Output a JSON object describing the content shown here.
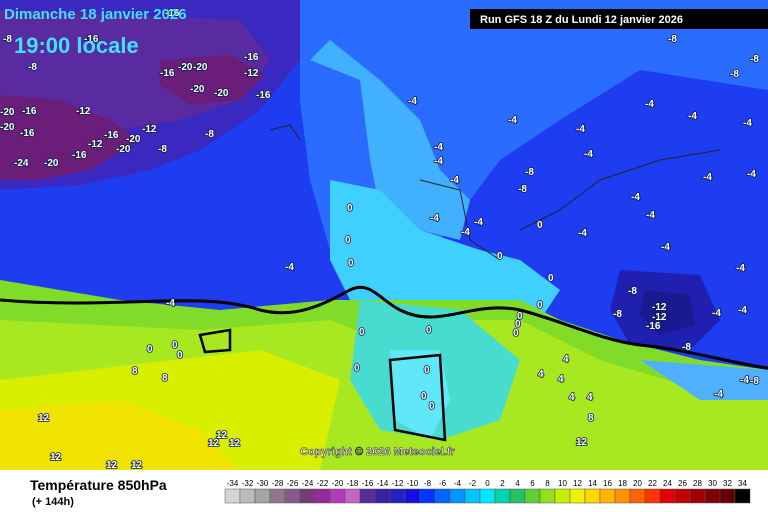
{
  "header": {
    "date": "Dimanche 18 janvier 2026",
    "time": "19:00 locale",
    "run": "Run GFS 18 Z du Lundi 12 janvier 2026"
  },
  "copyright": "Copyright © 2026 Meteociel.fr",
  "footer": {
    "title": "Température 850hPa",
    "lead": "(+ 144h)"
  },
  "legend": {
    "ticks": [
      -34,
      -32,
      -30,
      -28,
      -26,
      -24,
      -22,
      -20,
      -18,
      -16,
      -14,
      -12,
      -10,
      -8,
      -6,
      -4,
      -2,
      0,
      2,
      4,
      6,
      8,
      10,
      12,
      14,
      16,
      18,
      20,
      22,
      24,
      26,
      28,
      30,
      32,
      34
    ],
    "colors": [
      "#d4d4d4",
      "#bcbcbc",
      "#a4a4a4",
      "#8c7a8c",
      "#8a5a8a",
      "#7a3a7a",
      "#962a96",
      "#b43cb4",
      "#c864c8",
      "#5a2a9a",
      "#3c1ea0",
      "#2222c4",
      "#1010e0",
      "#0034ff",
      "#0064ff",
      "#0096ff",
      "#00c4ff",
      "#00eaff",
      "#00d2b4",
      "#28c064",
      "#5ed030",
      "#94e020",
      "#c4f000",
      "#f0f000",
      "#ffd800",
      "#ffb400",
      "#ff9000",
      "#ff6400",
      "#ff3200",
      "#e00000",
      "#c00000",
      "#a00000",
      "#800000",
      "#600000",
      "#000000"
    ]
  },
  "contour_labels": [
    "-16",
    "-8",
    "-16",
    "-8",
    "-16",
    "-20",
    "-20",
    "-16",
    "-12",
    "-20",
    "-20",
    "-16",
    "-20",
    "-16",
    "-12",
    "-20",
    "-16",
    "-12",
    "-16",
    "-20",
    "-12",
    "-20",
    "-8",
    "-8",
    "-16",
    "-24",
    "-20",
    "-8",
    "-8",
    "-8",
    "-4",
    "-4",
    "-4",
    "-4",
    "-4",
    "-4",
    "-4",
    "-4",
    "-4",
    "-8",
    "-4",
    "-8",
    "-4",
    "-4",
    "-4",
    "-4",
    "-4",
    "-4",
    "-4",
    "0",
    "0",
    "0",
    "0",
    "-4",
    "-4",
    "-4",
    "-4",
    "0",
    "0",
    "0",
    "-8",
    "-12",
    "-12",
    "-16",
    "-8",
    "-4",
    "-4",
    "-8",
    "0",
    "0",
    "0",
    "0",
    "0",
    "-4",
    "0",
    "0",
    "0",
    "0",
    "0",
    "0",
    "0",
    "4",
    "4",
    "4",
    "8",
    "8",
    "4",
    "4",
    "-4",
    "-8",
    "-4",
    "8",
    "12",
    "12",
    "12",
    "12",
    "12",
    "12",
    "12",
    "12"
  ]
}
